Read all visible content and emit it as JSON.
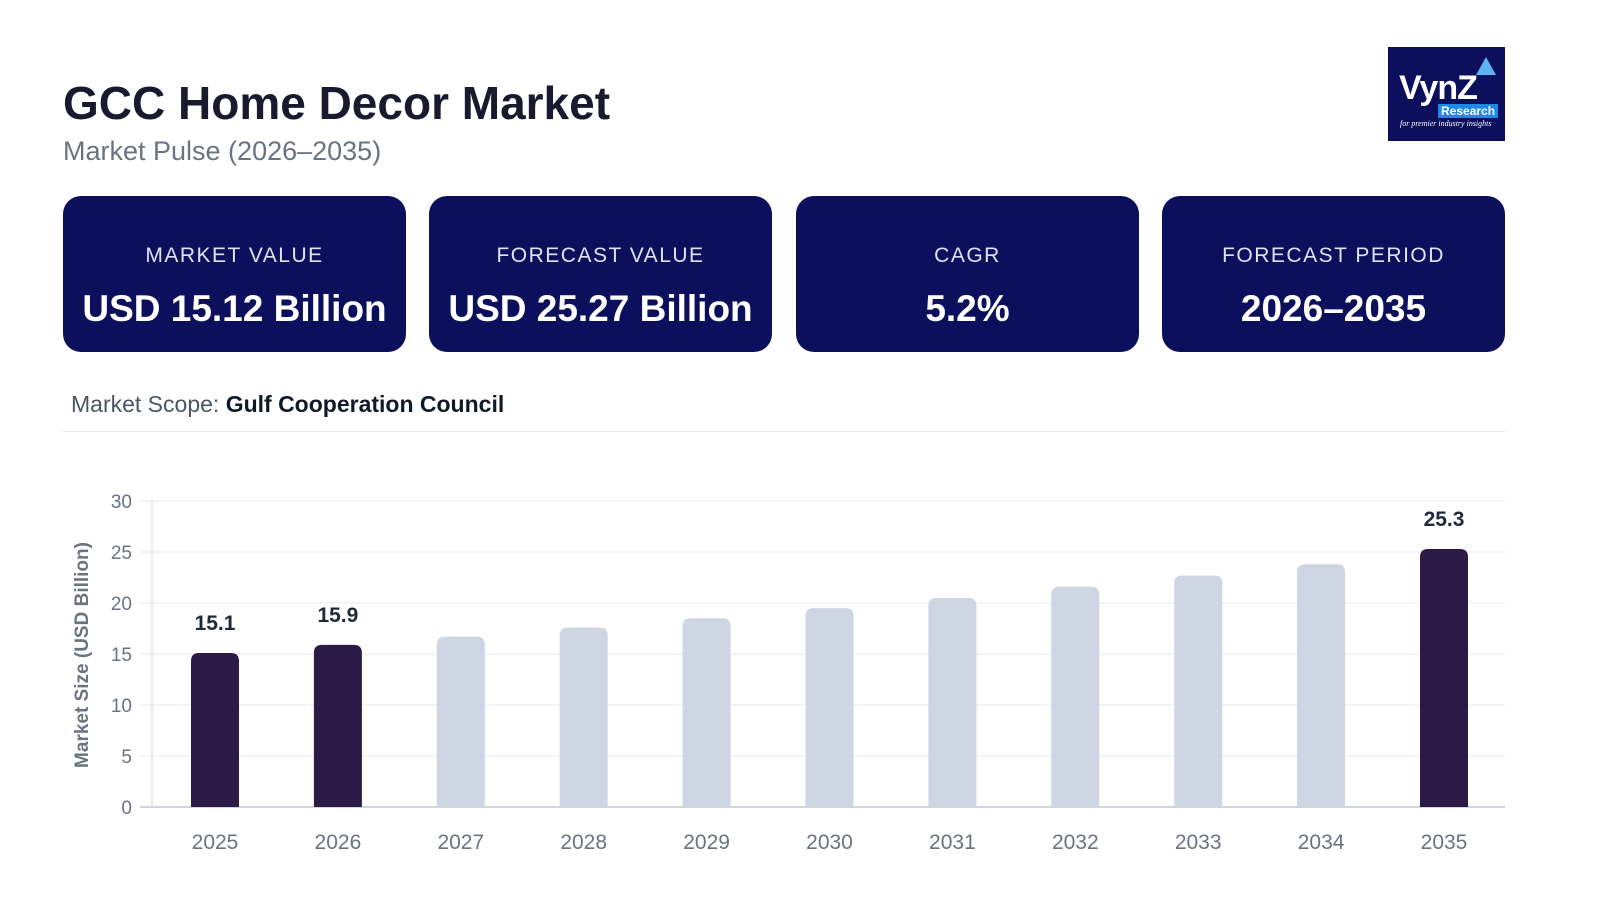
{
  "header": {
    "title": "GCC Home Decor Market",
    "subtitle": "Market Pulse (2026–2035)"
  },
  "logo": {
    "main": "VynZ",
    "sub": "Research",
    "tagline": "for premier industry insights"
  },
  "cards": [
    {
      "label": "MARKET VALUE",
      "value": "USD 15.12 Billion"
    },
    {
      "label": "FORECAST VALUE",
      "value": "USD 25.27 Billion"
    },
    {
      "label": "CAGR",
      "value": "5.2%"
    },
    {
      "label": "FORECAST PERIOD",
      "value": "2026–2035"
    }
  ],
  "scope": {
    "label": "Market Scope:",
    "value": "Gulf Cooperation Council"
  },
  "colors": {
    "highlight": "#2d1b47",
    "muted": "#cdd6e2",
    "card": "#0b0f5c"
  },
  "chart_data": {
    "type": "bar",
    "categories": [
      "2025",
      "2026",
      "2027",
      "2028",
      "2029",
      "2030",
      "2031",
      "2032",
      "2033",
      "2034",
      "2035"
    ],
    "values": [
      15.1,
      15.9,
      16.7,
      17.6,
      18.5,
      19.5,
      20.5,
      21.6,
      22.7,
      23.8,
      25.3
    ],
    "highlighted": [
      "2025",
      "2026",
      "2035"
    ],
    "data_labels": {
      "2025": "15.1",
      "2026": "15.9",
      "2035": "25.3"
    },
    "ylabel": "Market Size (USD Billion)",
    "ylim": [
      0,
      30
    ],
    "yticks": [
      0,
      5,
      10,
      15,
      20,
      25,
      30
    ],
    "grid": true
  }
}
